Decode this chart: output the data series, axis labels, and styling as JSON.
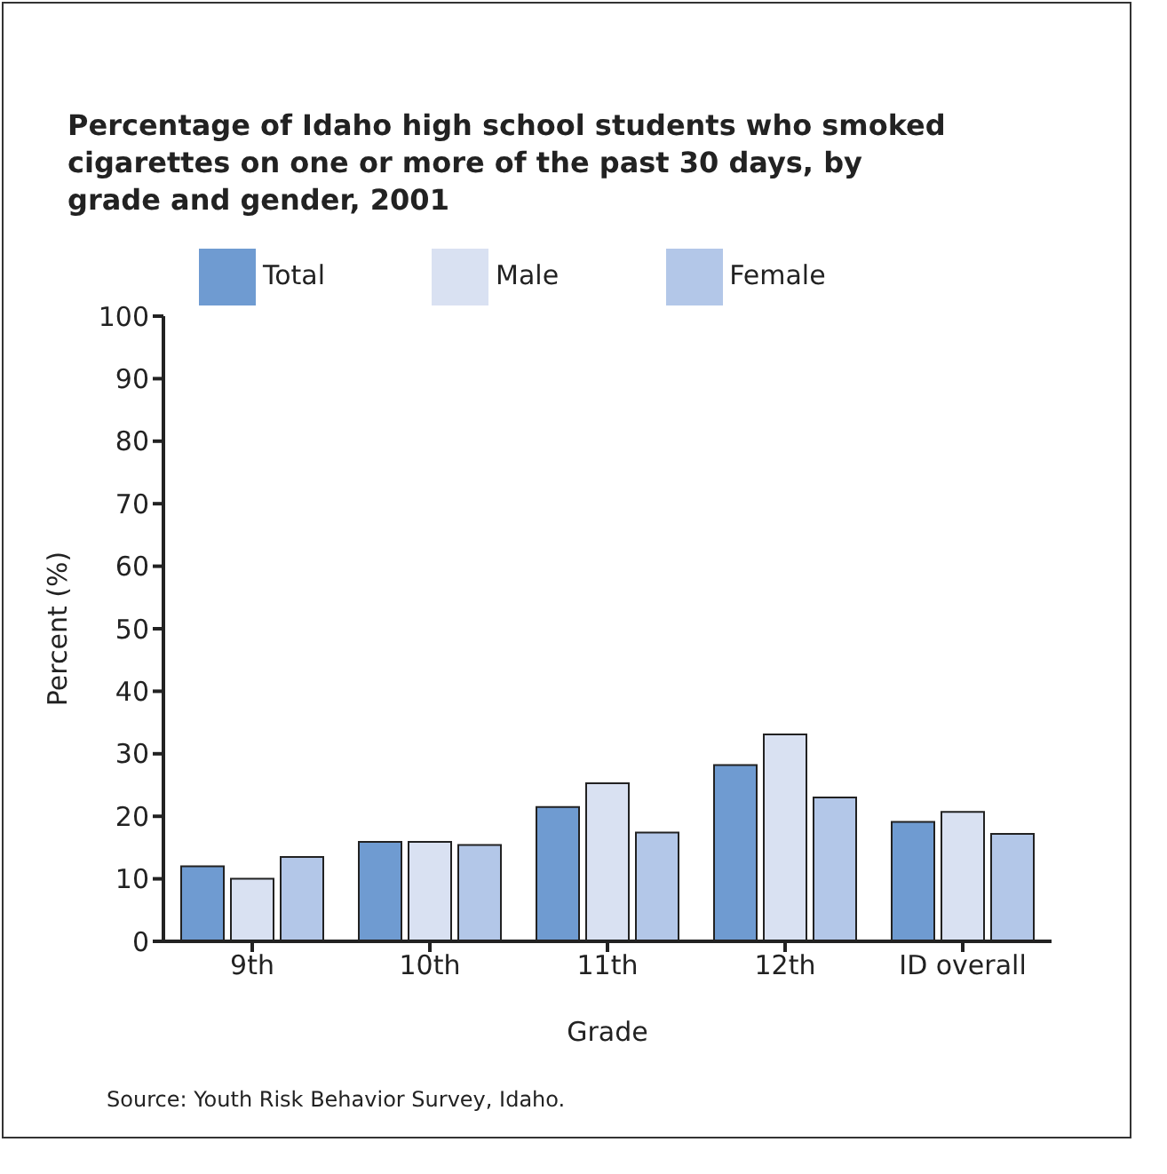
{
  "chart_data": {
    "type": "bar",
    "title": "Percentage of Idaho high school students who smoked cigarettes on one or more of the past 30 days, by grade and gender, 2001",
    "xlabel": "Grade",
    "ylabel": "Percent (%)",
    "categories": [
      "9th",
      "10th",
      "11th",
      "12th",
      "ID overall"
    ],
    "series": [
      {
        "name": "Total",
        "color": "#6f9bd1",
        "values": [
          12,
          15.9,
          21.5,
          28.2,
          19.1
        ]
      },
      {
        "name": "Male",
        "color": "#d9e1f2",
        "values": [
          10,
          15.9,
          25.3,
          33.1,
          20.7
        ]
      },
      {
        "name": "Female",
        "color": "#b3c7e8",
        "values": [
          13.5,
          15.4,
          17.4,
          23.0,
          17.2
        ]
      }
    ],
    "ylim": [
      0,
      100
    ],
    "yticks": [
      0,
      10,
      20,
      30,
      40,
      50,
      60,
      70,
      80,
      90,
      100
    ],
    "legend": "top",
    "grid": false,
    "annotations": [
      "Source: Youth Risk Behavior Survey, Idaho."
    ]
  }
}
